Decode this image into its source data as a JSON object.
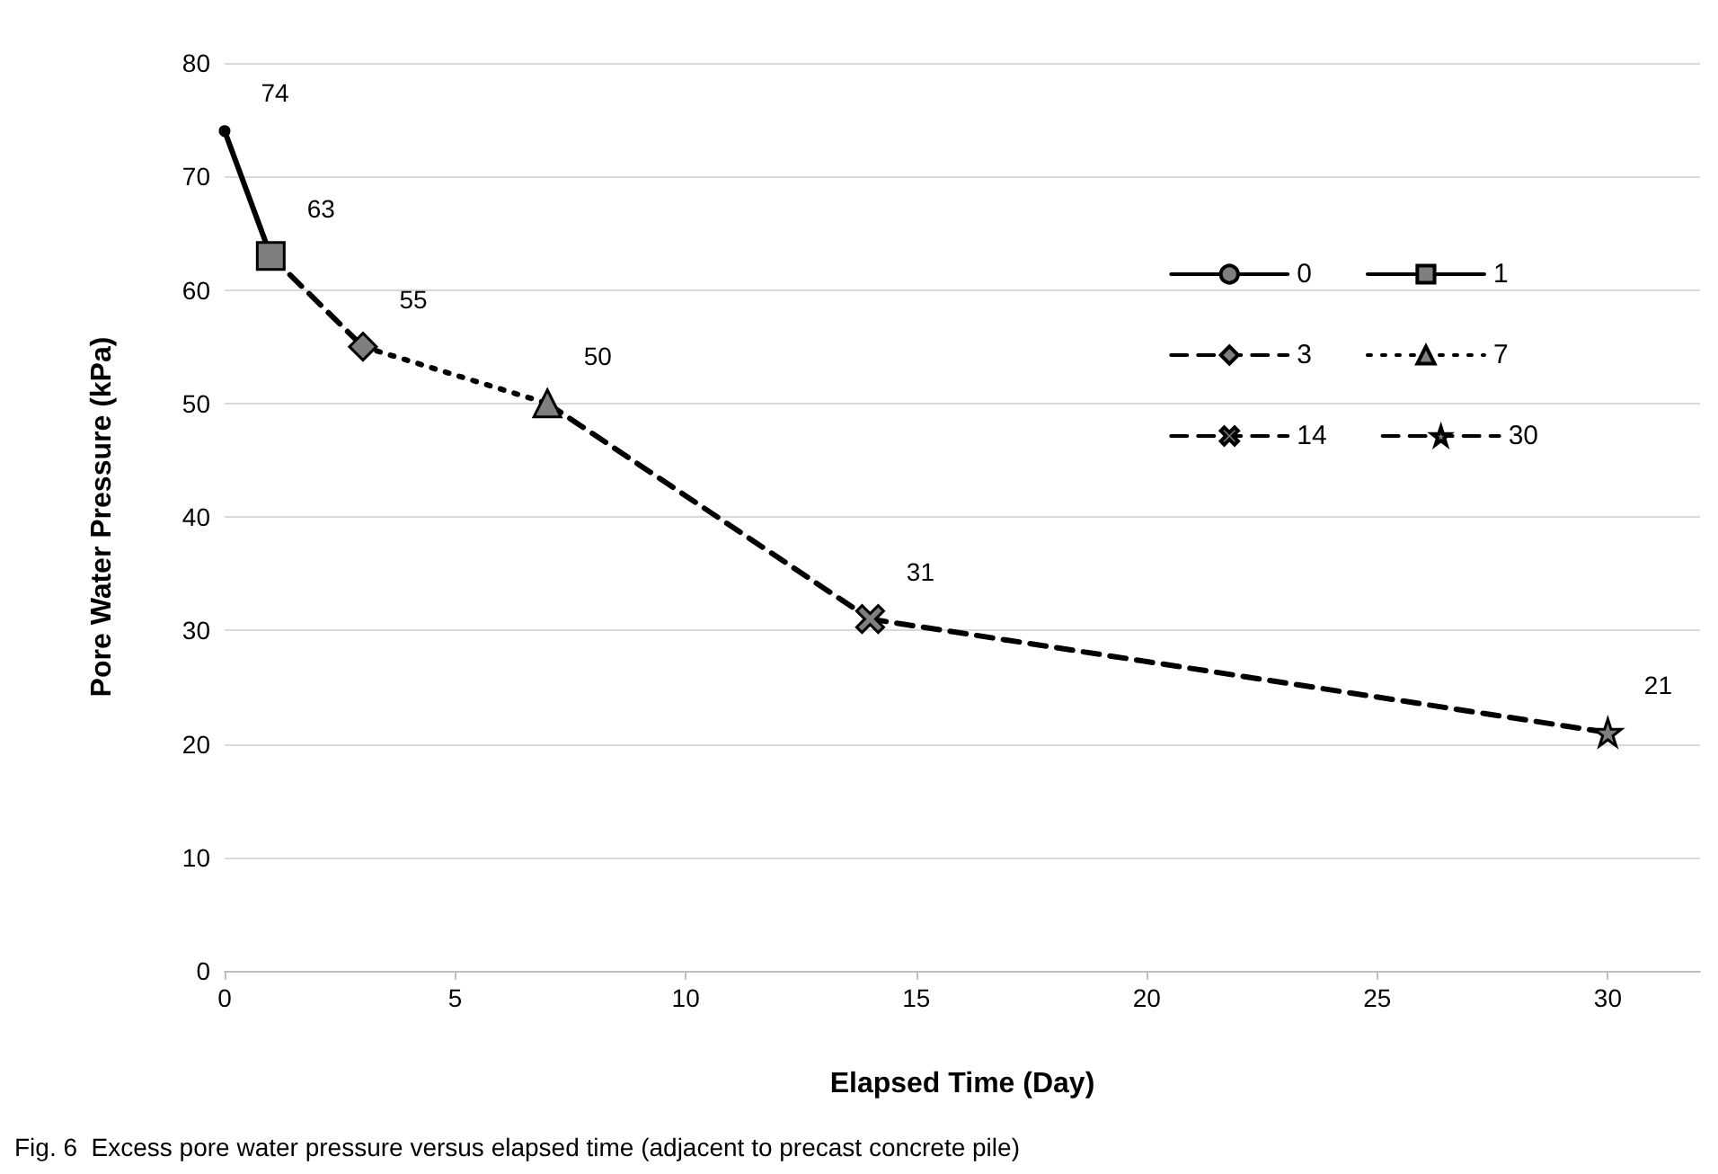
{
  "chart_data": {
    "type": "line",
    "xlabel": "Elapsed Time (Day)",
    "ylabel": "Pore Water Pressure (kPa)",
    "annotations": [
      "Fig. 6  Excess pore water pressure versus elapsed time (adjacent to precast concrete pile)"
    ],
    "xlim": [
      0,
      32
    ],
    "xticks": [
      0,
      5,
      10,
      15,
      20,
      25,
      30
    ],
    "ylim": [
      0,
      80
    ],
    "yticks": [
      0,
      10,
      20,
      30,
      40,
      50,
      60,
      70,
      80
    ],
    "grid": "y",
    "legend": "top right",
    "series": [
      {
        "name": "0",
        "color": "#000000",
        "x": [
          0
        ],
        "values": [
          74
        ],
        "value_labels": [
          "74"
        ],
        "marker": "circle",
        "line_style": "solid"
      },
      {
        "name": "1",
        "color": "#000000",
        "x": [
          0,
          1
        ],
        "values": [
          74,
          63
        ],
        "value_labels": [
          null,
          "63"
        ],
        "marker": "square",
        "line_style": "solid"
      },
      {
        "name": "3",
        "color": "#000000",
        "x": [
          1,
          3
        ],
        "values": [
          63,
          55
        ],
        "value_labels": [
          null,
          "55"
        ],
        "marker": "diamond",
        "line_style": "dashed"
      },
      {
        "name": "7",
        "color": "#000000",
        "x": [
          3,
          7
        ],
        "values": [
          55,
          50
        ],
        "value_labels": [
          null,
          "50"
        ],
        "marker": "triangle",
        "line_style": "dotted"
      },
      {
        "name": "14",
        "color": "#000000",
        "x": [
          7,
          14
        ],
        "values": [
          50,
          31
        ],
        "value_labels": [
          null,
          "31"
        ],
        "marker": "cross",
        "line_style": "dashed"
      },
      {
        "name": "30",
        "color": "#000000",
        "x": [
          14,
          30
        ],
        "values": [
          31,
          21
        ],
        "value_labels": [
          null,
          "21"
        ],
        "marker": "star",
        "line_style": "dashed"
      }
    ]
  }
}
